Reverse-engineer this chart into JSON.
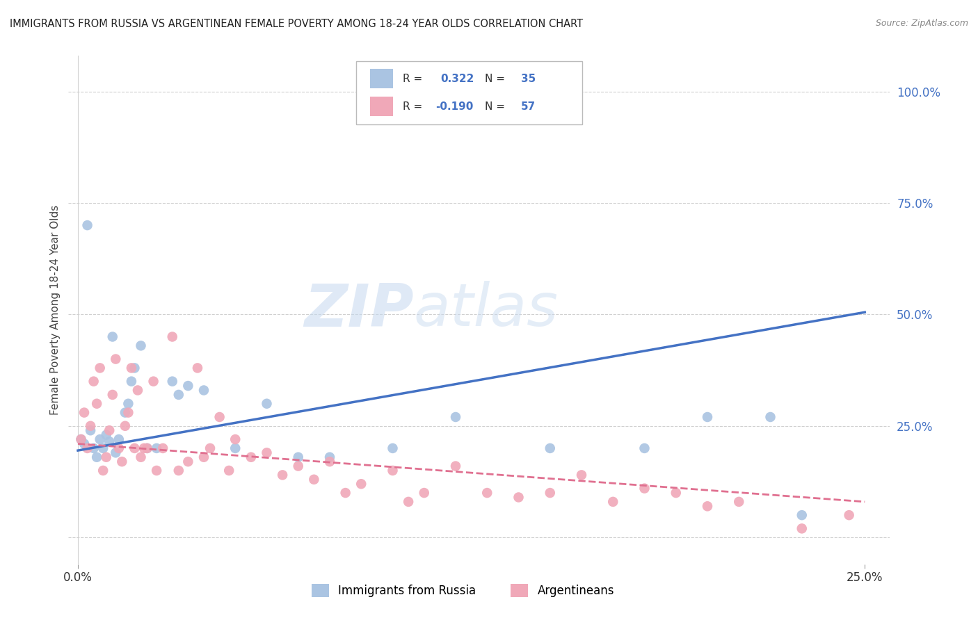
{
  "title": "IMMIGRANTS FROM RUSSIA VS ARGENTINEAN FEMALE POVERTY AMONG 18-24 YEAR OLDS CORRELATION CHART",
  "source": "Source: ZipAtlas.com",
  "ylabel": "Female Poverty Among 18-24 Year Olds",
  "right_yticks": [
    "100.0%",
    "75.0%",
    "50.0%",
    "25.0%"
  ],
  "right_ytick_vals": [
    1.0,
    0.75,
    0.5,
    0.25
  ],
  "legend_label1_a": "R = ",
  "legend_label1_b": " 0.322",
  "legend_label1_c": "  N = ",
  "legend_label1_d": "35",
  "legend_label2_a": "R = ",
  "legend_label2_b": "-0.190",
  "legend_label2_c": "  N = ",
  "legend_label2_d": "57",
  "legend_series1": "Immigrants from Russia",
  "legend_series2": "Argentineans",
  "color_blue": "#aac4e2",
  "color_pink": "#f0a8b8",
  "color_blue_line": "#4472c4",
  "color_pink_line": "#e07090",
  "color_axis_blue": "#4472c4",
  "background_color": "#ffffff",
  "grid_color": "#d0d0d0",
  "russia_x": [
    0.001,
    0.002,
    0.003,
    0.004,
    0.005,
    0.006,
    0.007,
    0.008,
    0.009,
    0.01,
    0.011,
    0.012,
    0.013,
    0.015,
    0.016,
    0.017,
    0.018,
    0.02,
    0.022,
    0.025,
    0.03,
    0.032,
    0.035,
    0.04,
    0.05,
    0.06,
    0.07,
    0.08,
    0.1,
    0.12,
    0.15,
    0.18,
    0.2,
    0.22,
    0.23
  ],
  "russia_y": [
    0.22,
    0.21,
    0.7,
    0.24,
    0.2,
    0.18,
    0.22,
    0.2,
    0.23,
    0.215,
    0.45,
    0.19,
    0.22,
    0.28,
    0.3,
    0.35,
    0.38,
    0.43,
    0.2,
    0.2,
    0.35,
    0.32,
    0.34,
    0.33,
    0.2,
    0.3,
    0.18,
    0.18,
    0.2,
    0.27,
    0.2,
    0.2,
    0.27,
    0.27,
    0.05
  ],
  "arg_x": [
    0.001,
    0.002,
    0.003,
    0.004,
    0.005,
    0.006,
    0.007,
    0.008,
    0.009,
    0.01,
    0.011,
    0.012,
    0.013,
    0.014,
    0.015,
    0.016,
    0.017,
    0.018,
    0.019,
    0.02,
    0.021,
    0.022,
    0.024,
    0.025,
    0.027,
    0.03,
    0.032,
    0.035,
    0.038,
    0.04,
    0.042,
    0.045,
    0.048,
    0.05,
    0.055,
    0.06,
    0.065,
    0.07,
    0.075,
    0.08,
    0.085,
    0.09,
    0.1,
    0.105,
    0.11,
    0.12,
    0.13,
    0.14,
    0.15,
    0.16,
    0.17,
    0.18,
    0.19,
    0.2,
    0.21,
    0.23,
    0.245
  ],
  "arg_y": [
    0.22,
    0.28,
    0.2,
    0.25,
    0.35,
    0.3,
    0.38,
    0.15,
    0.18,
    0.24,
    0.32,
    0.4,
    0.2,
    0.17,
    0.25,
    0.28,
    0.38,
    0.2,
    0.33,
    0.18,
    0.2,
    0.2,
    0.35,
    0.15,
    0.2,
    0.45,
    0.15,
    0.17,
    0.38,
    0.18,
    0.2,
    0.27,
    0.15,
    0.22,
    0.18,
    0.19,
    0.14,
    0.16,
    0.13,
    0.17,
    0.1,
    0.12,
    0.15,
    0.08,
    0.1,
    0.16,
    0.1,
    0.09,
    0.1,
    0.14,
    0.08,
    0.11,
    0.1,
    0.07,
    0.08,
    0.02,
    0.05
  ],
  "blue_line_x": [
    0.0,
    0.25
  ],
  "blue_line_y": [
    0.195,
    0.505
  ],
  "pink_line_x": [
    0.0,
    0.25
  ],
  "pink_line_y": [
    0.21,
    0.08
  ],
  "xlim": [
    -0.003,
    0.258
  ],
  "ylim": [
    -0.06,
    1.08
  ],
  "xgrid_vals": [
    0.0,
    0.25
  ],
  "ygrid_vals": [
    0.0,
    0.25,
    0.5,
    0.75,
    1.0
  ]
}
